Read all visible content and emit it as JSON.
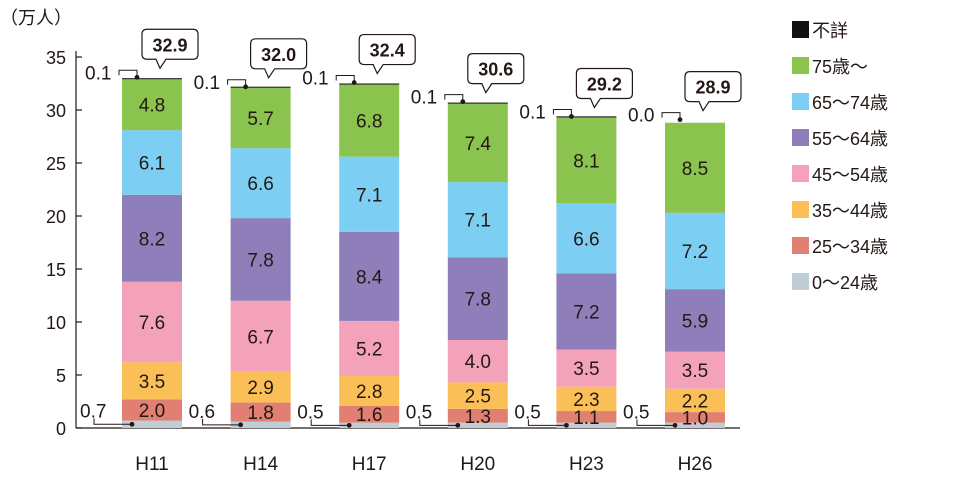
{
  "chart_data": {
    "type": "bar",
    "stacked": true,
    "title": "",
    "ylabel": "（万人）",
    "xlabel": "",
    "ylim": [
      0,
      35
    ],
    "yticks": [
      "0",
      "5",
      "10",
      "15",
      "20",
      "25",
      "30",
      "35"
    ],
    "grid": false,
    "legend_position": "right",
    "categories": [
      "H11",
      "H14",
      "H17",
      "H20",
      "H23",
      "H26"
    ],
    "series": [
      {
        "name": "0～24歳",
        "color": "#bfcdd6",
        "values": [
          0.7,
          0.6,
          0.5,
          0.5,
          0.5,
          0.5
        ],
        "labels": [
          "0.7",
          "0.6",
          "0.5",
          "0.5",
          "0.5",
          "0.5"
        ]
      },
      {
        "name": "25～34歳",
        "color": "#e07f72",
        "values": [
          2.0,
          1.8,
          1.6,
          1.3,
          1.1,
          1.0
        ],
        "labels": [
          "2.0",
          "1.8",
          "1.6",
          "1.3",
          "1.1",
          "1.0"
        ]
      },
      {
        "name": "35～44歳",
        "color": "#fbbf57",
        "values": [
          3.5,
          2.9,
          2.8,
          2.5,
          2.3,
          2.2
        ],
        "labels": [
          "3.5",
          "2.9",
          "2.8",
          "2.5",
          "2.3",
          "2.2"
        ]
      },
      {
        "name": "45～54歳",
        "color": "#f4a2b9",
        "values": [
          7.6,
          6.7,
          5.2,
          4.0,
          3.5,
          3.5
        ],
        "labels": [
          "7.6",
          "6.7",
          "5.2",
          "4.0",
          "3.5",
          "3.5"
        ]
      },
      {
        "name": "55～64歳",
        "color": "#8e7fba",
        "values": [
          8.2,
          7.8,
          8.4,
          7.8,
          7.2,
          5.9
        ],
        "labels": [
          "8.2",
          "7.8",
          "8.4",
          "7.8",
          "7.2",
          "5.9"
        ]
      },
      {
        "name": "65～74歳",
        "color": "#7ccff2",
        "values": [
          6.1,
          6.6,
          7.1,
          7.1,
          6.6,
          7.2
        ],
        "labels": [
          "6.1",
          "6.6",
          "7.1",
          "7.1",
          "6.6",
          "7.2"
        ]
      },
      {
        "name": "75歳～",
        "color": "#8bc34f",
        "values": [
          4.8,
          5.7,
          6.8,
          7.4,
          8.1,
          8.5
        ],
        "labels": [
          "4.8",
          "5.7",
          "6.8",
          "7.4",
          "8.1",
          "8.5"
        ]
      },
      {
        "name": "不詳",
        "color": "#111111",
        "values": [
          0.1,
          0.1,
          0.1,
          0.1,
          0.1,
          0.0
        ],
        "labels": [
          "0.1",
          "0.1",
          "0.1",
          "0.1",
          "0.1",
          "0.0"
        ]
      }
    ],
    "totals": [
      "32.9",
      "32.0",
      "32.4",
      "30.6",
      "29.2",
      "28.9"
    ],
    "total_values": [
      32.9,
      32.0,
      32.4,
      30.6,
      29.2,
      28.9
    ]
  }
}
